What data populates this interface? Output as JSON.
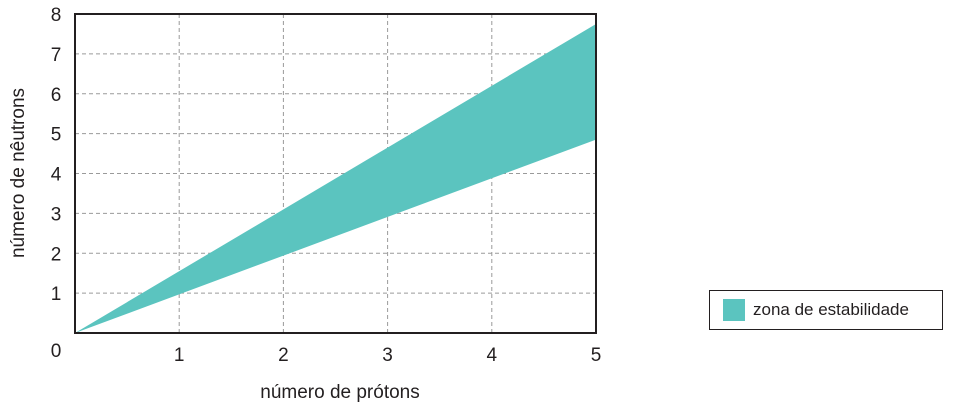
{
  "chart_data": {
    "type": "area",
    "xlabel": "número de prótons",
    "ylabel": "número de nêutrons",
    "xlim": [
      0,
      5
    ],
    "ylim": [
      0,
      8
    ],
    "x_ticks": [
      "1",
      "2",
      "3",
      "4",
      "5"
    ],
    "y_ticks": [
      "0",
      "1",
      "2",
      "3",
      "4",
      "5",
      "6",
      "7",
      "8"
    ],
    "grid": true,
    "grid_style": "dashed",
    "legend_position": "bottom-right outside",
    "series": [
      {
        "name": "zona de estabilidade",
        "color": "#5bc4bf",
        "x": [
          0,
          5
        ],
        "lower": [
          0,
          4.85
        ],
        "upper": [
          0,
          7.75
        ]
      }
    ]
  }
}
